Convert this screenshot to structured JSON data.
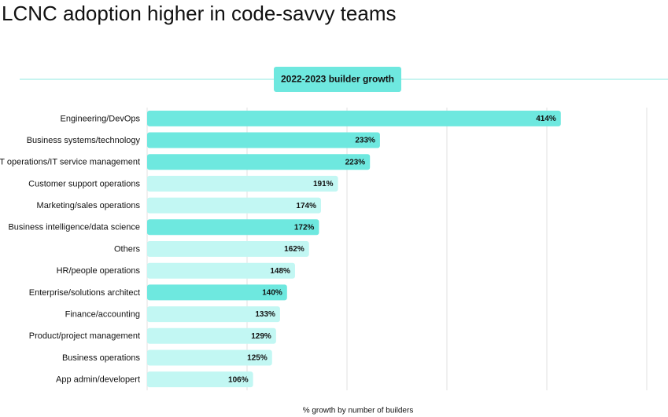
{
  "chart_data": {
    "type": "bar",
    "orientation": "horizontal",
    "title": "LCNC adoption higher in code-savvy teams",
    "subtitle": "2022-2023 builder growth",
    "x_label": "% growth by number of builders",
    "categories": [
      "Engineering/DevOps",
      "Business systems/technology",
      "IT operations/IT service management",
      "Customer support operations",
      "Marketing/sales operations",
      "Business intelligence/data science",
      "Others",
      "HR/people operations",
      "Enterprise/solutions architect",
      "Finance/accounting",
      "Product/project management",
      "Business operations",
      "App admin/developert"
    ],
    "values": [
      414,
      233,
      223,
      191,
      174,
      172,
      162,
      148,
      140,
      133,
      129,
      125,
      106
    ],
    "value_labels": [
      "414%",
      "233%",
      "223%",
      "191%",
      "174%",
      "172%",
      "162%",
      "148%",
      "140%",
      "133%",
      "129%",
      "125%",
      "106%"
    ],
    "colors": [
      "#6ee8df",
      "#6ee8df",
      "#6ee8df",
      "#c2f7f3",
      "#c2f7f3",
      "#6ee8df",
      "#c2f7f3",
      "#c2f7f3",
      "#6ee8df",
      "#c2f7f3",
      "#c2f7f3",
      "#c2f7f3",
      "#c2f7f3"
    ],
    "xlim": [
      0,
      500
    ],
    "xticks": [
      0,
      100,
      200,
      300,
      400,
      500
    ],
    "grid": true
  }
}
